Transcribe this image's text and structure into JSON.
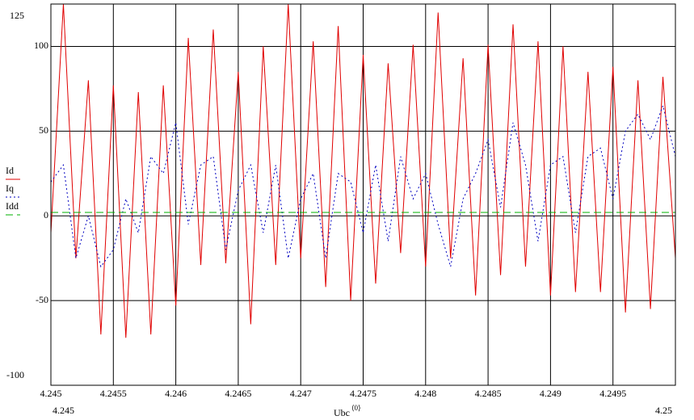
{
  "chart_data": {
    "type": "line",
    "x_label": "Ubc",
    "x_label_sup": "⟨0⟩",
    "xlim": [
      4.245,
      4.25
    ],
    "xticks": [
      4.245,
      4.2455,
      4.246,
      4.2465,
      4.247,
      4.2475,
      4.248,
      4.2485,
      4.249,
      4.2495
    ],
    "ylim": [
      -100,
      125
    ],
    "yticks": [
      100,
      50,
      0,
      -50
    ],
    "grid": true,
    "x": [
      4.245,
      4.2451,
      4.2452,
      4.2453,
      4.2454,
      4.2455,
      4.2456,
      4.2457,
      4.2458,
      4.2459,
      4.246,
      4.2461,
      4.2462,
      4.2463,
      4.2464,
      4.2465,
      4.2466,
      4.2467,
      4.2468,
      4.2469,
      4.247,
      4.2471,
      4.2472,
      4.2473,
      4.2474,
      4.2475,
      4.2476,
      4.2477,
      4.2478,
      4.2479,
      4.248,
      4.2481,
      4.2482,
      4.2483,
      4.2484,
      4.2485,
      4.2486,
      4.2487,
      4.2488,
      4.2489,
      4.249,
      4.2491,
      4.2492,
      4.2493,
      4.2494,
      4.2495,
      4.2496,
      4.2497,
      4.2498,
      4.2499,
      4.25
    ],
    "series": [
      {
        "name": "Id",
        "color": "#e00000",
        "style": "solid",
        "values": [
          -10,
          125,
          -25,
          80,
          -70,
          77,
          -72,
          73,
          -70,
          77,
          -53,
          105,
          -29,
          110,
          -28,
          85,
          -64,
          100,
          -29,
          125,
          -25,
          103,
          -42,
          112,
          -50,
          95,
          -40,
          90,
          -22,
          101,
          -30,
          120,
          -25,
          93,
          -47,
          101,
          -35,
          113,
          -30,
          103,
          -47,
          100,
          -45,
          85,
          -45,
          88,
          -57,
          80,
          -55,
          82,
          -25
        ]
      },
      {
        "name": "Iq",
        "color": "#0000c0",
        "style": "dotted",
        "values": [
          20,
          30,
          -25,
          0,
          -30,
          -20,
          10,
          -10,
          35,
          25,
          55,
          -5,
          30,
          35,
          -20,
          15,
          30,
          -10,
          30,
          -25,
          10,
          25,
          -25,
          25,
          20,
          -10,
          30,
          -15,
          35,
          10,
          25,
          -5,
          -30,
          10,
          25,
          45,
          5,
          55,
          30,
          -15,
          30,
          35,
          -10,
          35,
          40,
          10,
          50,
          60,
          45,
          65,
          35
        ]
      },
      {
        "name": "Idd",
        "color": "#00b000",
        "style": "dashed",
        "x": [
          4.245,
          4.25
        ],
        "values": [
          2,
          2
        ]
      }
    ]
  }
}
